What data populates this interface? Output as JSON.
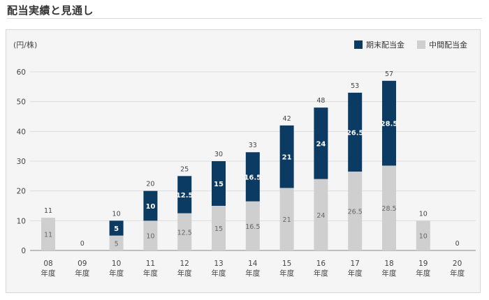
{
  "page": {
    "title": "配当実績と見通し"
  },
  "colors": {
    "final": "#0b3a63",
    "interim": "#cfcfcf",
    "grid": "#dddddd",
    "axis": "#888888"
  },
  "chart_data": {
    "type": "bar",
    "stacked": true,
    "unit_label": "(円/株)",
    "ylim": [
      0,
      60
    ],
    "yticks": [
      0,
      10,
      20,
      30,
      40,
      50,
      60
    ],
    "grid": true,
    "legend_position": "top-right",
    "categories": [
      [
        "08",
        "年度"
      ],
      [
        "09",
        "年度"
      ],
      [
        "10",
        "年度"
      ],
      [
        "11",
        "年度"
      ],
      [
        "12",
        "年度"
      ],
      [
        "13",
        "年度"
      ],
      [
        "14",
        "年度"
      ],
      [
        "15",
        "年度"
      ],
      [
        "16",
        "年度"
      ],
      [
        "17",
        "年度"
      ],
      [
        "18",
        "年度"
      ],
      [
        "19",
        "年度"
      ],
      [
        "20",
        "年度"
      ]
    ],
    "series": [
      {
        "name": "中間配当金",
        "values": [
          11,
          0,
          5,
          10,
          12.5,
          15,
          16.5,
          21,
          24,
          26.5,
          28.5,
          10,
          0
        ]
      },
      {
        "name": "期末配当金",
        "values": [
          0,
          0,
          5,
          10,
          12.5,
          15,
          16.5,
          21,
          24,
          26.5,
          28.5,
          0,
          0
        ]
      }
    ],
    "totals": [
      11,
      0,
      10,
      20,
      25,
      30,
      33,
      42,
      48,
      53,
      57,
      10,
      0
    ],
    "legend": [
      {
        "name": "期末配当金",
        "color": "#0b3a63"
      },
      {
        "name": "中間配当金",
        "color": "#cfcfcf"
      }
    ]
  }
}
